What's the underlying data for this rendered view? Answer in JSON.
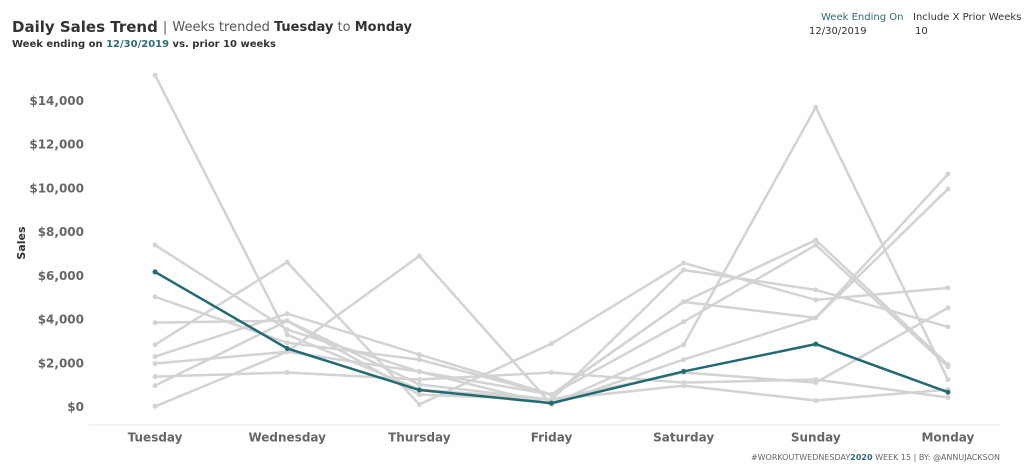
{
  "header": {
    "title": "Daily Sales Trend",
    "separator": "|",
    "trend_prefix": "Weeks trended ",
    "trend_start": "Tuesday",
    "trend_middle": " to ",
    "trend_end": "Monday",
    "sub_prefix": "Week ending on ",
    "sub_date": "12/30/2019",
    "sub_suffix": " vs. prior 10 weeks"
  },
  "controls": [
    {
      "label": "Week Ending On",
      "value": "12/30/2019"
    },
    {
      "label": "Include X Prior Weeks",
      "value": "10"
    }
  ],
  "footer": {
    "tag": "#WORKOUTWEDNESDAY",
    "year": "2020",
    "rest": " WEEK 15 | BY: @ANNUJACKSON"
  },
  "chart_data": {
    "type": "line",
    "y_label": "Sales",
    "categories": [
      "Tuesday",
      "Wednesday",
      "Thursday",
      "Friday",
      "Saturday",
      "Sunday",
      "Monday"
    ],
    "ylim": [
      -800,
      15800
    ],
    "yticks": [
      {
        "value": 0,
        "label": "$0"
      },
      {
        "value": 2000,
        "label": "$2,000"
      },
      {
        "value": 4000,
        "label": "$4,000"
      },
      {
        "value": 6000,
        "label": "$6,000"
      },
      {
        "value": 8000,
        "label": "$8,000"
      },
      {
        "value": 10000,
        "label": "$10,000"
      },
      {
        "value": 12000,
        "label": "$12,000"
      },
      {
        "value": 14000,
        "label": "$14,000"
      }
    ],
    "grid": false,
    "series": [
      {
        "color": "#d3d3d3",
        "values": [
          15200,
          3330,
          820,
          360,
          1000,
          320,
          820
        ]
      },
      {
        "color": "#d3d3d3",
        "values": [
          7430,
          3560,
          1640,
          140,
          2870,
          13730,
          1280
        ]
      },
      {
        "color": "#d3d3d3",
        "values": [
          5060,
          2960,
          2190,
          590,
          4830,
          7660,
          1960
        ]
      },
      {
        "color": "#d3d3d3",
        "values": [
          3880,
          3970,
          1050,
          360,
          6290,
          5380,
          3690
        ]
      },
      {
        "color": "#d3d3d3",
        "values": [
          2870,
          6650,
          140,
          2920,
          6610,
          4920,
          5470
        ]
      },
      {
        "color": "#d3d3d3",
        "values": [
          2330,
          4290,
          2420,
          590,
          3920,
          7430,
          1870
        ]
      },
      {
        "color": "#d3d3d3",
        "values": [
          2010,
          2550,
          6930,
          140,
          2190,
          4100,
          10670
        ]
      },
      {
        "color": "#d3d3d3",
        "values": [
          1410,
          1600,
          1280,
          1600,
          1140,
          1280,
          460
        ]
      },
      {
        "color": "#d3d3d3",
        "values": [
          1000,
          3960,
          590,
          360,
          1600,
          1140,
          4560
        ]
      },
      {
        "color": "#d3d3d3",
        "values": [
          50,
          2550,
          1640,
          590,
          4830,
          4100,
          9990
        ]
      },
      {
        "color": "#236b73",
        "values": [
          6200,
          2700,
          800,
          200,
          1650,
          2900,
          700
        ]
      }
    ]
  }
}
